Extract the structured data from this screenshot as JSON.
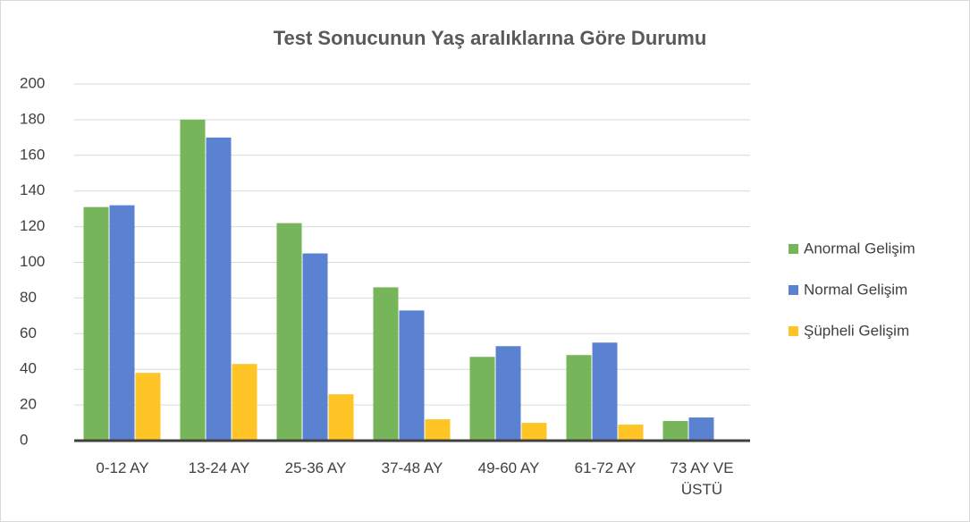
{
  "chart_data": {
    "type": "bar",
    "title": "Test Sonucunun Yaş aralıklarına Göre Durumu",
    "categories": [
      "0-12 AY",
      "13-24 AY",
      "25-36 AY",
      "37-48 AY",
      "49-60 AY",
      "61-72 AY",
      "73 AY VE ÜSTÜ"
    ],
    "series": [
      {
        "name": "Anormal Gelişim",
        "color": "#77b55a",
        "values": [
          131,
          180,
          122,
          86,
          47,
          48,
          11
        ]
      },
      {
        "name": "Normal Gelişim",
        "color": "#5b82d1",
        "values": [
          132,
          170,
          105,
          73,
          53,
          55,
          13
        ]
      },
      {
        "name": "Şüpheli Gelişim",
        "color": "#ffc425",
        "values": [
          38,
          43,
          26,
          12,
          10,
          9,
          0
        ]
      }
    ],
    "ylim": [
      0,
      200
    ],
    "yticks": [
      0,
      20,
      40,
      60,
      80,
      100,
      120,
      140,
      160,
      180,
      200
    ],
    "grid": true,
    "legend": "right"
  }
}
